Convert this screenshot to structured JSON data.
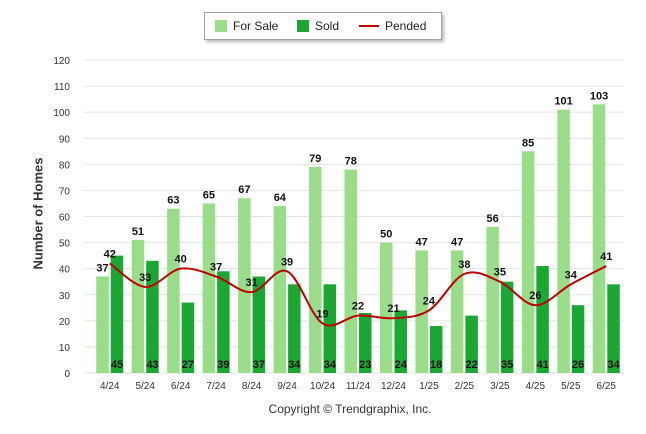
{
  "chart_data": {
    "type": "bar",
    "categories": [
      "4/24",
      "5/24",
      "6/24",
      "7/24",
      "8/24",
      "9/24",
      "10/24",
      "11/24",
      "12/24",
      "1/25",
      "2/25",
      "3/25",
      "4/25",
      "5/25",
      "6/25"
    ],
    "series": [
      {
        "name": "For Sale",
        "type": "bar",
        "color": "#99dd88",
        "values": [
          37,
          51,
          63,
          65,
          67,
          64,
          79,
          78,
          50,
          47,
          47,
          56,
          85,
          101,
          103
        ]
      },
      {
        "name": "Sold",
        "type": "bar",
        "color": "#1aa832",
        "values": [
          45,
          43,
          27,
          39,
          37,
          34,
          34,
          23,
          24,
          18,
          22,
          35,
          41,
          26,
          34
        ]
      },
      {
        "name": "Pended",
        "type": "line",
        "color": "#c00000",
        "values": [
          42,
          33,
          40,
          37,
          31,
          39,
          19,
          22,
          21,
          24,
          38,
          35,
          26,
          34,
          41
        ]
      }
    ],
    "ylabel": "Number of Homes",
    "xlabel": "",
    "ylim": [
      0,
      120
    ],
    "yticks": [
      0,
      10,
      20,
      30,
      40,
      50,
      60,
      70,
      80,
      90,
      100,
      110,
      120
    ],
    "grid": true,
    "legend_position": "top-center"
  },
  "legend": {
    "for_sale": "For Sale",
    "sold": "Sold",
    "pended": "Pended"
  },
  "footer": {
    "copyright": "Copyright © Trendgraphix, Inc."
  }
}
